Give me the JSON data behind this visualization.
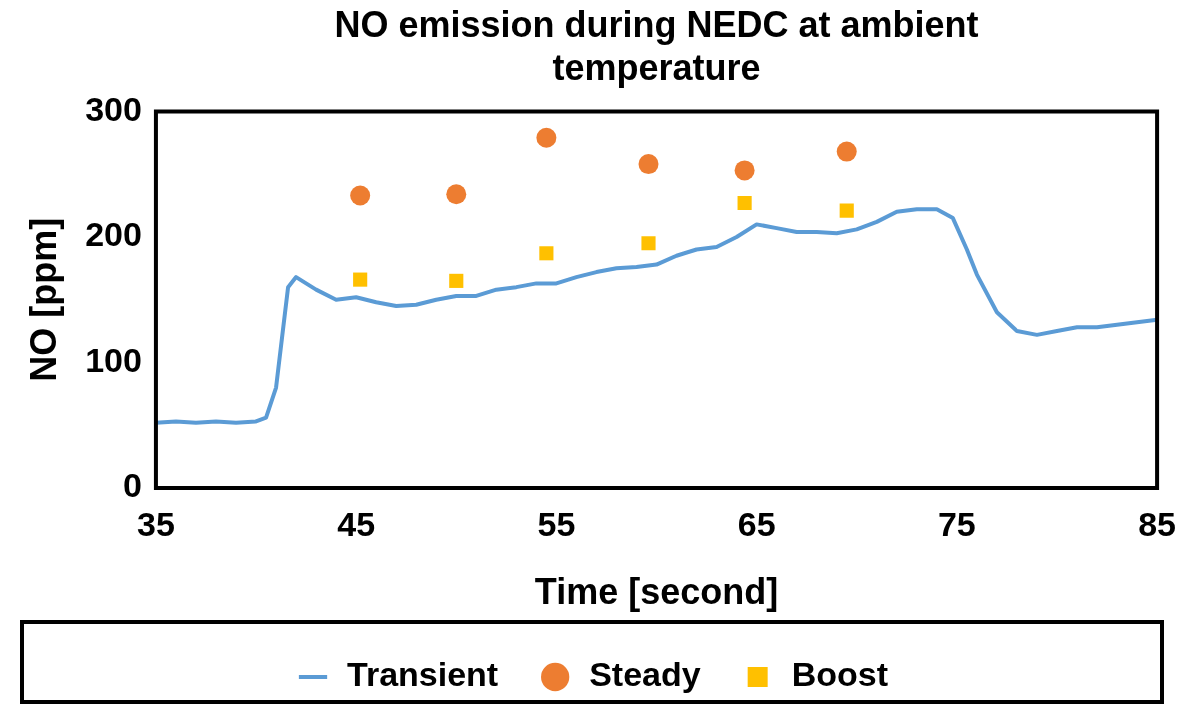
{
  "chart_data": {
    "type": "line",
    "title": "NO emission during NEDC at ambient temperature",
    "xlabel": "Time [second]",
    "ylabel": "NO [ppm]",
    "xlim": [
      35,
      85
    ],
    "xticks": [
      35,
      45,
      55,
      65,
      75,
      85
    ],
    "ylim": [
      0,
      300
    ],
    "yticks": [
      0,
      100,
      200,
      300
    ],
    "grid": false,
    "legend": "bottom",
    "series": [
      {
        "name": "Transient",
        "color": "#5b9bd5",
        "marker": "none",
        "line_style": "solid",
        "x": [
          35,
          36,
          37,
          38,
          39,
          40,
          40.5,
          41,
          41.3,
          41.6,
          42,
          43,
          44,
          45,
          46,
          47,
          48,
          49,
          50,
          51,
          52,
          53,
          54,
          55,
          56,
          57,
          58,
          59,
          60,
          61,
          62,
          63,
          64,
          65,
          66,
          67,
          68,
          69,
          70,
          71,
          72,
          73,
          74,
          74.8,
          75.5,
          76,
          77,
          78,
          79,
          80,
          81,
          82,
          83,
          84,
          85
        ],
        "values": [
          52,
          53,
          52,
          53,
          52,
          53,
          56,
          80,
          120,
          160,
          168,
          158,
          150,
          152,
          148,
          145,
          146,
          150,
          153,
          153,
          158,
          160,
          163,
          163,
          168,
          172,
          175,
          176,
          178,
          185,
          190,
          192,
          200,
          210,
          207,
          204,
          204,
          203,
          206,
          212,
          220,
          222,
          222,
          215,
          190,
          170,
          140,
          125,
          122,
          125,
          128,
          128,
          130,
          132,
          134
        ]
      },
      {
        "name": "Steady",
        "type": "scatter",
        "color": "#ed7d31",
        "marker": "circle",
        "x": [
          45.2,
          50,
          54.5,
          59.6,
          64.4,
          69.5
        ],
        "values": [
          233,
          234,
          279,
          258,
          253,
          268
        ]
      },
      {
        "name": "Boost",
        "type": "scatter",
        "color": "#ffc000",
        "marker": "square",
        "x": [
          45.2,
          50,
          54.5,
          59.6,
          64.4,
          69.5
        ],
        "values": [
          166,
          165,
          187,
          195,
          227,
          221
        ]
      }
    ]
  }
}
